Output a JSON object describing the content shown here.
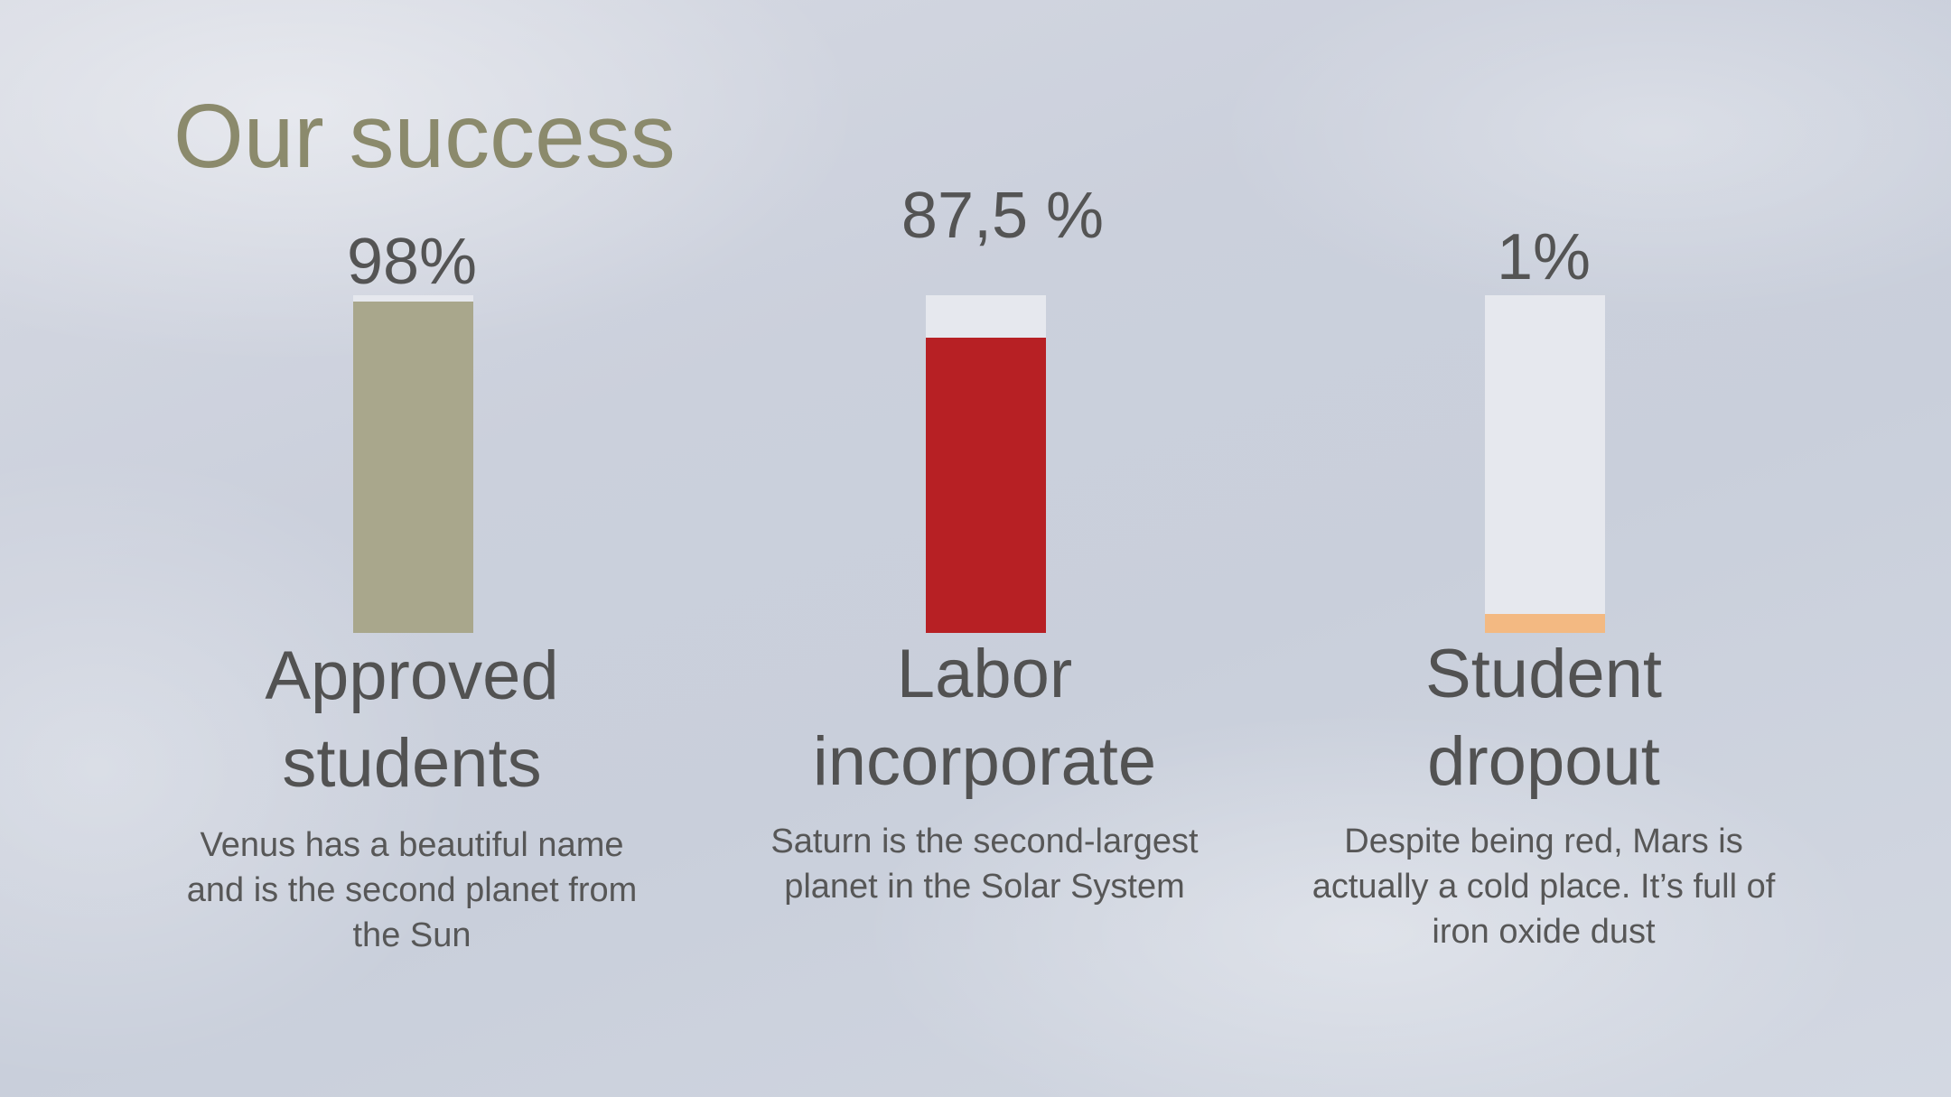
{
  "title": "Our success",
  "colors": {
    "title": "#8b8a6c",
    "text": "#545454",
    "track": "#e6e8ee"
  },
  "stats": [
    {
      "value_label": "98%",
      "value": 98,
      "bar_color": "#a9a78c",
      "heading": "Approved students",
      "description": "Venus has a beautiful name and is the second planet from the Sun"
    },
    {
      "value_label": "87,5 %",
      "value": 87.5,
      "bar_color": "#b72024",
      "heading": "Labor incorporate",
      "description": "Saturn is the second-largest planet in the Solar System"
    },
    {
      "value_label": "1%",
      "value": 1,
      "bar_color": "#f3b982",
      "heading": "Student dropout",
      "description": "Despite being red, Mars is actually a cold place. It’s full of iron oxide dust"
    }
  ]
}
